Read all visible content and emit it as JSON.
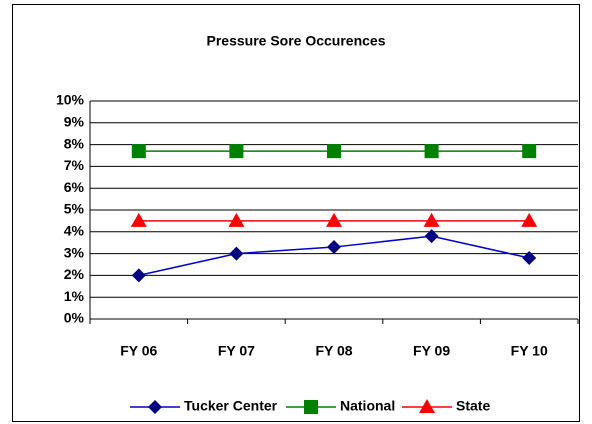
{
  "chart_data": {
    "type": "line",
    "title": "Pressure Sore Occurences",
    "categories": [
      "FY 06",
      "FY 07",
      "FY 08",
      "FY 09",
      "FY 10"
    ],
    "series": [
      {
        "name": "Tucker Center",
        "color": "#000080",
        "marker": "diamond",
        "values": [
          2.0,
          3.0,
          3.3,
          3.8,
          2.8
        ]
      },
      {
        "name": "National",
        "color": "#008000",
        "marker": "square",
        "values": [
          7.7,
          7.7,
          7.7,
          7.7,
          7.7
        ]
      },
      {
        "name": "State",
        "color": "#ff0000",
        "marker": "triangle",
        "values": [
          4.5,
          4.5,
          4.5,
          4.5,
          4.5
        ]
      }
    ],
    "ylim": [
      0,
      10
    ],
    "yticks": [
      {
        "value": 0,
        "label": "0%"
      },
      {
        "value": 1,
        "label": "1%"
      },
      {
        "value": 2,
        "label": "2%"
      },
      {
        "value": 3,
        "label": "3%"
      },
      {
        "value": 4,
        "label": "4%"
      },
      {
        "value": 5,
        "label": "5%"
      },
      {
        "value": 6,
        "label": "6%"
      },
      {
        "value": 7,
        "label": "7%"
      },
      {
        "value": 8,
        "label": "8%"
      },
      {
        "value": 9,
        "label": "9%"
      },
      {
        "value": 10,
        "label": "10%"
      }
    ],
    "grid": true,
    "legend": "bottom"
  }
}
